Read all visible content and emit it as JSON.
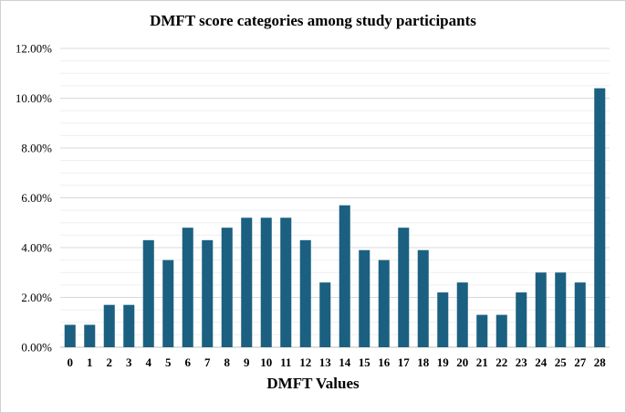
{
  "chart_data": {
    "type": "bar",
    "title": "DMFT score categories among study participants",
    "xlabel": "DMFT Values",
    "ylabel": "",
    "ylim": [
      0,
      12
    ],
    "y_ticks": [
      "0.00%",
      "2.00%",
      "4.00%",
      "6.00%",
      "8.00%",
      "10.00%",
      "12.00%"
    ],
    "y_tick_values": [
      0,
      2,
      4,
      6,
      8,
      10,
      12
    ],
    "grid": true,
    "legend": "none",
    "bar_color": "#1b6080",
    "categories": [
      "0",
      "1",
      "2",
      "3",
      "4",
      "5",
      "6",
      "7",
      "8",
      "9",
      "10",
      "11",
      "12",
      "13",
      "14",
      "15",
      "16",
      "17",
      "18",
      "19",
      "20",
      "21",
      "22",
      "23",
      "24",
      "25",
      "27",
      "28"
    ],
    "values": [
      0.9,
      0.9,
      1.7,
      1.7,
      4.3,
      3.5,
      4.8,
      4.3,
      4.8,
      5.2,
      5.2,
      5.2,
      4.3,
      2.6,
      5.7,
      3.9,
      3.5,
      4.8,
      3.9,
      2.2,
      2.6,
      1.3,
      1.3,
      2.2,
      3.0,
      3.0,
      2.6,
      10.4
    ]
  }
}
